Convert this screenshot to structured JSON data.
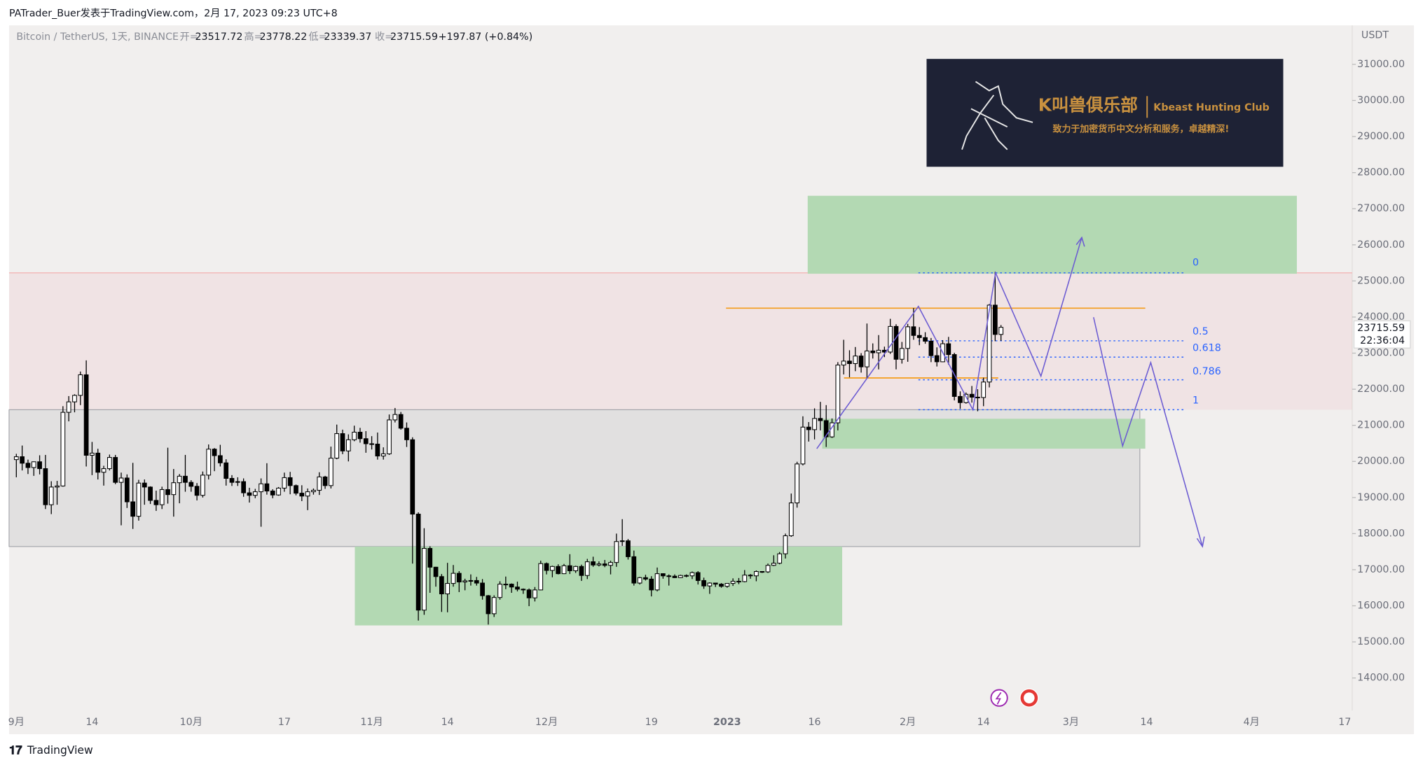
{
  "header": {
    "attribution": "PATrader_Buer发表于TradingView.com，2月 17, 2023 09:23 UTC+8",
    "symbol": "Bitcoin / TetherUS, 1天, BINANCE",
    "open_label": "开=",
    "high_label": "高=",
    "low_label": "低=",
    "close_label": "收=",
    "change": "+197.87 (+0.84%)"
  },
  "banner": {
    "name_cn": "K叫兽俱乐部",
    "name_en": "Kbeast Hunting Club",
    "slogan": "致力于加密货币中文分析和服务，卓越精深!"
  },
  "footer": {
    "brand": "TradingView"
  },
  "chart_data": {
    "type": "candlestick",
    "currency": "USDT",
    "countdown": "22:36:04",
    "up_color": "#ffffff",
    "down_color": "#000000",
    "fib_levels": [
      0,
      0.5,
      0.618,
      0.786,
      1
    ],
    "categories": [
      "09-01",
      "09-02",
      "09-03",
      "09-04",
      "09-05",
      "09-06",
      "09-07",
      "09-08",
      "09-09",
      "09-10",
      "09-11",
      "09-12",
      "09-13",
      "09-14",
      "09-15",
      "09-16",
      "09-17",
      "09-18",
      "09-19",
      "09-20",
      "09-21",
      "09-22",
      "09-23",
      "09-24",
      "09-25",
      "09-26",
      "09-27",
      "09-28",
      "09-29",
      "09-30",
      "10-01",
      "10-02",
      "10-03",
      "10-04",
      "10-05",
      "10-06",
      "10-07",
      "10-08",
      "10-09",
      "10-10",
      "10-11",
      "10-12",
      "10-13",
      "10-14",
      "10-15",
      "10-16",
      "10-17",
      "10-18",
      "10-19",
      "10-20",
      "10-21",
      "10-22",
      "10-23",
      "10-24",
      "10-25",
      "10-26",
      "10-27",
      "10-28",
      "10-29",
      "10-30",
      "10-31",
      "11-01",
      "11-02",
      "11-03",
      "11-04",
      "11-05",
      "11-06",
      "11-07",
      "11-08",
      "11-09",
      "11-10",
      "11-11",
      "11-12",
      "11-13",
      "11-14",
      "11-15",
      "11-16",
      "11-17",
      "11-18",
      "11-19",
      "11-20",
      "11-21",
      "11-22",
      "11-23",
      "11-24",
      "11-25",
      "11-26",
      "11-27",
      "11-28",
      "11-29",
      "11-30",
      "12-01",
      "12-02",
      "12-03",
      "12-04",
      "12-05",
      "12-06",
      "12-07",
      "12-08",
      "12-09",
      "12-10",
      "12-11",
      "12-12",
      "12-13",
      "12-14",
      "12-15",
      "12-16",
      "12-17",
      "12-18",
      "12-19",
      "12-20",
      "12-21",
      "12-22",
      "12-23",
      "12-24",
      "12-25",
      "12-26",
      "12-27",
      "12-28",
      "12-29",
      "12-30",
      "12-31",
      "01-01",
      "01-02",
      "01-03",
      "01-04",
      "01-05",
      "01-06",
      "01-07",
      "01-08",
      "01-09",
      "01-10",
      "01-11",
      "01-12",
      "01-13",
      "01-14",
      "01-15",
      "01-16",
      "01-17",
      "01-18",
      "01-19",
      "01-20",
      "01-21",
      "01-22",
      "01-23",
      "01-24",
      "01-25",
      "01-26",
      "01-27",
      "01-28",
      "01-29",
      "01-30",
      "01-31",
      "02-01",
      "02-02",
      "02-03",
      "02-04",
      "02-05",
      "02-06",
      "02-07",
      "02-08",
      "02-09",
      "02-10",
      "02-11",
      "02-12",
      "02-13",
      "02-14",
      "02-15",
      "02-16",
      "02-17"
    ],
    "open": [
      20050,
      20130,
      19950,
      19830,
      19990,
      19800,
      18800,
      19290,
      19320,
      21360,
      21650,
      21830,
      22400,
      20170,
      20230,
      19700,
      19800,
      20110,
      19420,
      19540,
      18880,
      18480,
      19400,
      19290,
      18920,
      18800,
      19220,
      19080,
      19410,
      19590,
      19420,
      19310,
      19060,
      19620,
      20340,
      20160,
      19960,
      19530,
      19420,
      19440,
      19130,
      19060,
      19160,
      19380,
      19180,
      19070,
      19260,
      19550,
      19330,
      19120,
      19040,
      19160,
      19200,
      19570,
      19330,
      20090,
      20770,
      20290,
      20600,
      20810,
      20630,
      20490,
      20480,
      20150,
      20210,
      21150,
      21300,
      20920,
      20600,
      18540,
      15880,
      17590,
      17070,
      16810,
      16330,
      16620,
      16900,
      16660,
      16690,
      16700,
      16630,
      16280,
      15780,
      16230,
      16600,
      16600,
      16520,
      16460,
      16440,
      16220,
      16440,
      17170,
      16980,
      17090,
      16890,
      17110,
      16970,
      17090,
      16840,
      17220,
      17130,
      17160,
      17120,
      17200,
      17780,
      17800,
      17360,
      16630,
      16780,
      16740,
      16440,
      16890,
      16830,
      16820,
      16780,
      16840,
      16830,
      16920,
      16700,
      16550,
      16630,
      16600,
      16540,
      16620,
      16680,
      16670,
      16850,
      16830,
      16950,
      16940,
      17120,
      17180,
      17440,
      17940,
      18850,
      19930,
      20950,
      20880,
      21190,
      21130,
      20680,
      21070,
      22670,
      22780,
      22710,
      22920,
      22620,
      23060,
      23010,
      23080,
      23030,
      23740,
      22830,
      23130,
      23730,
      23490,
      23430,
      23330,
      22930,
      22760,
      23260,
      22960,
      21800,
      21630,
      21860,
      21780,
      21770,
      22200,
      24330,
      23517.72
    ],
    "high": [
      20210,
      20440,
      20050,
      20000,
      20170,
      20180,
      19450,
      19460,
      21530,
      21810,
      21860,
      22490,
      22800,
      20540,
      20350,
      19880,
      20190,
      20180,
      19690,
      19640,
      19960,
      19490,
      19500,
      19310,
      19190,
      19300,
      20380,
      19790,
      19650,
      20180,
      19480,
      19400,
      19720,
      20470,
      20370,
      20460,
      20060,
      19620,
      19560,
      19530,
      19270,
      19240,
      19530,
      19950,
      19230,
      19290,
      19690,
      19710,
      19360,
      19340,
      19250,
      19250,
      19700,
      19600,
      20410,
      21020,
      20880,
      20750,
      20990,
      20930,
      20840,
      20700,
      20800,
      20390,
      21300,
      21480,
      21370,
      21080,
      20670,
      18590,
      18150,
      17650,
      17080,
      16880,
      17190,
      17130,
      16960,
      16750,
      16870,
      16800,
      16740,
      16300,
      16290,
      16680,
      16810,
      16620,
      16670,
      16480,
      16480,
      16520,
      17250,
      17200,
      17110,
      17150,
      17160,
      17430,
      17110,
      17140,
      17300,
      17360,
      17230,
      17270,
      17250,
      18000,
      18400,
      17850,
      17530,
      16800,
      16860,
      16820,
      17060,
      16900,
      16870,
      16870,
      16860,
      16870,
      16950,
      16960,
      16780,
      16650,
      16620,
      16630,
      16630,
      16760,
      16770,
      16990,
      16880,
      16980,
      16960,
      17170,
      17400,
      17490,
      18000,
      19110,
      19990,
      21250,
      21090,
      21470,
      21650,
      21560,
      21190,
      22750,
      23370,
      23080,
      23170,
      23000,
      23820,
      23270,
      23500,
      23180,
      23950,
      23800,
      23310,
      23810,
      24250,
      23720,
      23580,
      23420,
      23160,
      23360,
      23450,
      23010,
      21940,
      21910,
      22090,
      22000,
      22320,
      24360,
      25250,
      23778.22
    ],
    "low": [
      19560,
      19750,
      19650,
      19600,
      19640,
      18680,
      18540,
      18800,
      19300,
      21110,
      21360,
      21560,
      19860,
      19620,
      19500,
      19330,
      19750,
      19370,
      18230,
      18710,
      18130,
      18360,
      18800,
      18820,
      18630,
      18680,
      18830,
      18470,
      18840,
      19160,
      19160,
      18920,
      19000,
      19500,
      19730,
      19860,
      19330,
      19320,
      19320,
      19020,
      18860,
      18980,
      18190,
      19080,
      18980,
      19050,
      19160,
      19090,
      19060,
      18900,
      18650,
      19080,
      19070,
      19240,
      19250,
      20060,
      20200,
      20000,
      20560,
      20520,
      20240,
      20330,
      20050,
      20050,
      20180,
      21080,
      20880,
      20400,
      17170,
      15590,
      15750,
      16360,
      16530,
      15830,
      15820,
      16530,
      16380,
      16430,
      16560,
      16560,
      16170,
      15480,
      15690,
      16170,
      16460,
      16360,
      16400,
      16330,
      15990,
      16120,
      16430,
      16870,
      16790,
      16870,
      16880,
      16880,
      16910,
      16690,
      16740,
      17080,
      17090,
      17070,
      16870,
      17080,
      17660,
      17280,
      16560,
      16590,
      16700,
      16260,
      16400,
      16750,
      16560,
      16770,
      16770,
      16790,
      16740,
      16590,
      16470,
      16330,
      16520,
      16500,
      16500,
      16550,
      16600,
      16650,
      16750,
      16680,
      16910,
      16910,
      17100,
      17150,
      17310,
      17910,
      18720,
      19890,
      20550,
      20610,
      20860,
      20400,
      20650,
      20860,
      22410,
      22330,
      22500,
      22460,
      22300,
      22850,
      22550,
      22890,
      22980,
      22550,
      22710,
      22760,
      23370,
      23220,
      23260,
      22750,
      22630,
      22750,
      22680,
      21690,
      21460,
      21600,
      21630,
      21390,
      21530,
      22050,
      23330,
      23339.37
    ],
    "close": [
      20130,
      19950,
      19830,
      19990,
      19800,
      18800,
      19290,
      19320,
      21360,
      21650,
      21830,
      22400,
      20170,
      20230,
      19700,
      19800,
      20110,
      19420,
      19540,
      18880,
      18480,
      19400,
      19290,
      18920,
      18800,
      19220,
      19080,
      19410,
      19590,
      19420,
      19310,
      19060,
      19620,
      20340,
      20160,
      19960,
      19530,
      19420,
      19440,
      19130,
      19060,
      19160,
      19380,
      19180,
      19070,
      19260,
      19550,
      19330,
      19120,
      19040,
      19160,
      19200,
      19570,
      19330,
      20090,
      20770,
      20290,
      20600,
      20810,
      20630,
      20490,
      20480,
      20150,
      20210,
      21150,
      21300,
      20920,
      20600,
      18540,
      15880,
      17590,
      17070,
      16810,
      16330,
      16620,
      16900,
      16660,
      16690,
      16700,
      16630,
      16280,
      15780,
      16230,
      16600,
      16600,
      16520,
      16460,
      16440,
      16220,
      16440,
      17170,
      16980,
      17090,
      16890,
      17110,
      16970,
      17090,
      16840,
      17220,
      17130,
      17160,
      17120,
      17200,
      17780,
      17800,
      17360,
      16630,
      16780,
      16740,
      16440,
      16890,
      16830,
      16820,
      16780,
      16840,
      16830,
      16920,
      16700,
      16550,
      16630,
      16600,
      16540,
      16620,
      16680,
      16670,
      16850,
      16830,
      16950,
      16940,
      17120,
      17180,
      17440,
      17940,
      18850,
      19930,
      20950,
      20880,
      21190,
      21130,
      20680,
      21070,
      22670,
      22780,
      22710,
      22920,
      22620,
      23060,
      23010,
      23080,
      23030,
      23740,
      22830,
      23130,
      23730,
      23490,
      23430,
      23330,
      22930,
      22760,
      23260,
      22960,
      21800,
      21630,
      21860,
      21780,
      21770,
      22200,
      24330,
      23517.72,
      23715.59
    ],
    "ylim": [
      13096,
      32080
    ],
    "yticks": [
      {
        "value": 14000,
        "label": "14000.00"
      },
      {
        "value": 15000,
        "label": "15000.00"
      },
      {
        "value": 16000,
        "label": "16000.00"
      },
      {
        "value": 17000,
        "label": "17000.00"
      },
      {
        "value": 18000,
        "label": "18000.00"
      },
      {
        "value": 19000,
        "label": "19000.00"
      },
      {
        "value": 20000,
        "label": "20000.00"
      },
      {
        "value": 21000,
        "label": "21000.00"
      },
      {
        "value": 22000,
        "label": "22000.00"
      },
      {
        "value": 23000,
        "label": "23000.00"
      },
      {
        "value": 24000,
        "label": "24000.00"
      },
      {
        "value": 25000,
        "label": "25000.00"
      },
      {
        "value": 26000,
        "label": "26000.00"
      },
      {
        "value": 27000,
        "label": "27000.00"
      },
      {
        "value": 28000,
        "label": "28000.00"
      },
      {
        "value": 29000,
        "label": "29000.00"
      },
      {
        "value": 30000,
        "label": "30000.00"
      },
      {
        "value": 31000,
        "label": "31000.00"
      }
    ],
    "xticks": [
      {
        "value": "09-01",
        "label": "9月"
      },
      {
        "value": "09-14",
        "label": "14"
      },
      {
        "value": "10-01",
        "label": "10月"
      },
      {
        "value": "10-17",
        "label": "17"
      },
      {
        "value": "11-01",
        "label": "11月"
      },
      {
        "value": "11-14",
        "label": "14"
      },
      {
        "value": "12-01",
        "label": "12月"
      },
      {
        "value": "12-19",
        "label": "19"
      },
      {
        "value": "01-01",
        "label": "2023"
      },
      {
        "value": "01-16",
        "label": "16"
      },
      {
        "value": "02-01",
        "label": "2月"
      },
      {
        "value": "02-14",
        "label": "14"
      },
      {
        "value": "03-01",
        "label": "3月"
      },
      {
        "value": "03-14",
        "label": "14"
      },
      {
        "value": "04-01",
        "label": "4月"
      },
      {
        "value": "04-17",
        "label": "17"
      }
    ]
  }
}
